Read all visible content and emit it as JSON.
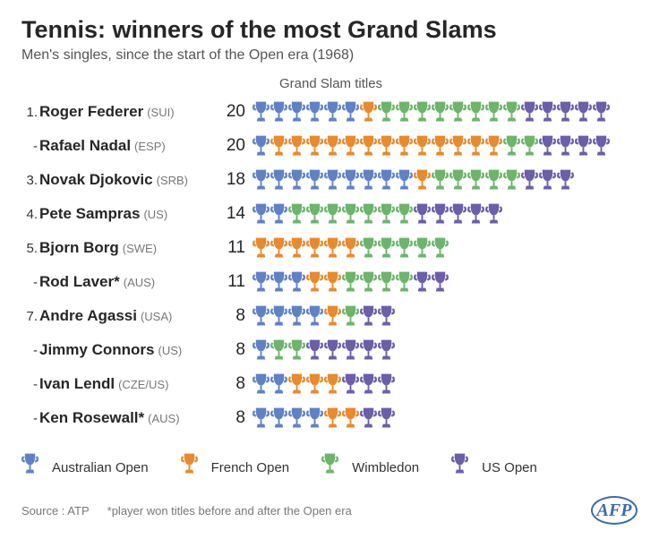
{
  "title": "Tennis: winners of the most Grand Slams",
  "subtitle": "Men's singles, since the start of the Open era (1968)",
  "column_header": "Grand Slam titles",
  "colors": {
    "australian": "#5f82c7",
    "french": "#e88a2e",
    "wimbledon": "#6cb56b",
    "usopen": "#6c5eab",
    "text": "#262626",
    "subtext": "#777777"
  },
  "tournaments": [
    {
      "key": "australian",
      "label": "Australian Open"
    },
    {
      "key": "french",
      "label": "French Open"
    },
    {
      "key": "wimbledon",
      "label": "Wimbledon"
    },
    {
      "key": "usopen",
      "label": "US Open"
    }
  ],
  "players": [
    {
      "rank": "1.",
      "name": "Roger Federer",
      "country": "(SUI)",
      "total": 20,
      "slams": {
        "australian": 6,
        "french": 1,
        "wimbledon": 8,
        "usopen": 5
      }
    },
    {
      "rank": "-",
      "name": "Rafael Nadal",
      "country": "(ESP)",
      "total": 20,
      "slams": {
        "australian": 1,
        "french": 13,
        "wimbledon": 2,
        "usopen": 4
      }
    },
    {
      "rank": "3.",
      "name": "Novak Djokovic",
      "country": "(SRB)",
      "total": 18,
      "slams": {
        "australian": 9,
        "french": 1,
        "wimbledon": 5,
        "usopen": 3
      }
    },
    {
      "rank": "4.",
      "name": "Pete Sampras",
      "country": "(US)",
      "total": 14,
      "slams": {
        "australian": 2,
        "french": 0,
        "wimbledon": 7,
        "usopen": 5
      }
    },
    {
      "rank": "5.",
      "name": "Bjorn Borg",
      "country": "(SWE)",
      "total": 11,
      "slams": {
        "australian": 0,
        "french": 6,
        "wimbledon": 5,
        "usopen": 0
      }
    },
    {
      "rank": "-",
      "name": "Rod Laver*",
      "country": "(AUS)",
      "total": 11,
      "slams": {
        "australian": 3,
        "french": 2,
        "wimbledon": 4,
        "usopen": 2
      }
    },
    {
      "rank": "7.",
      "name": "Andre Agassi",
      "country": "(USA)",
      "total": 8,
      "slams": {
        "australian": 4,
        "french": 1,
        "wimbledon": 1,
        "usopen": 2
      }
    },
    {
      "rank": "-",
      "name": "Jimmy Connors",
      "country": "(US)",
      "total": 8,
      "slams": {
        "australian": 1,
        "french": 0,
        "wimbledon": 2,
        "usopen": 5
      }
    },
    {
      "rank": "-",
      "name": "Ivan Lendl",
      "country": "(CZE/US)",
      "total": 8,
      "slams": {
        "australian": 2,
        "french": 3,
        "wimbledon": 0,
        "usopen": 3
      }
    },
    {
      "rank": "-",
      "name": "Ken Rosewall*",
      "country": "(AUS)",
      "total": 8,
      "slams": {
        "australian": 4,
        "french": 2,
        "wimbledon": 0,
        "usopen": 2
      }
    }
  ],
  "tournament_order": [
    "australian",
    "french",
    "wimbledon",
    "usopen"
  ],
  "footer": {
    "source": "Source : ATP",
    "note": "*player won titles before and after the Open era",
    "logo": "AFP"
  }
}
